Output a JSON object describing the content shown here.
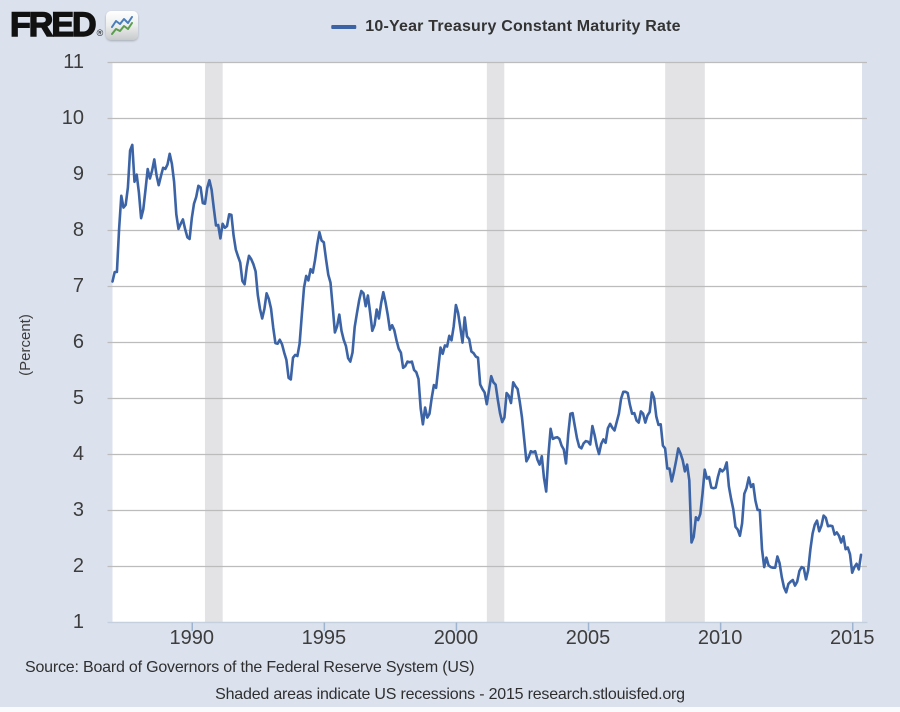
{
  "brand": {
    "logo_text": "FRED",
    "registered_mark": "®",
    "logo_icon": "fred-zigzag-chart-icon"
  },
  "legend": {
    "label": "10-Year Treasury Constant Maturity Rate",
    "line_color": "#3b63a5"
  },
  "footer": {
    "source_line": "Source: Board of Governors of the Federal Reserve System (US)",
    "note_line": "Shaded areas indicate US recessions - 2015 research.stlouisfed.org"
  },
  "colors": {
    "background": "#dbe2ee",
    "plot_background": "#ffffff",
    "gridline": "#bcbcbc",
    "recession_band": "#e3e3e5",
    "axis_line": "#c5d0df",
    "axis_tick": "#9eb4ce",
    "text": "#3d3d3d",
    "line": "#3b63a5"
  },
  "chart_data": {
    "type": "line",
    "title": "10-Year Treasury Constant Maturity Rate",
    "xlabel": "",
    "ylabel": "(Percent)",
    "xlim": [
      1987.0,
      2015.37
    ],
    "ylim": [
      1,
      11
    ],
    "y_ticks": [
      1,
      2,
      3,
      4,
      5,
      6,
      7,
      8,
      9,
      10,
      11
    ],
    "x_ticks": [
      1990,
      1995,
      2000,
      2005,
      2010,
      2015
    ],
    "grid": "horizontal",
    "legend_position": "top-center",
    "recession_note": "Shaded areas indicate US recessions",
    "recessions": [
      [
        1990.5,
        1991.17
      ],
      [
        2001.17,
        2001.83
      ],
      [
        2007.92,
        2009.42
      ]
    ],
    "series": [
      {
        "name": "10-Year Treasury Constant Maturity Rate",
        "color": "#3b63a5",
        "x_start": 1987.0,
        "x_step_years": 0.0833333,
        "frequency": "monthly",
        "values": [
          7.08,
          7.25,
          7.25,
          8.02,
          8.61,
          8.4,
          8.45,
          8.76,
          9.42,
          9.52,
          8.86,
          8.99,
          8.67,
          8.21,
          8.37,
          8.72,
          9.09,
          8.92,
          9.06,
          9.26,
          8.98,
          8.8,
          8.96,
          9.11,
          9.09,
          9.17,
          9.36,
          9.18,
          8.86,
          8.28,
          8.02,
          8.11,
          8.19,
          8.01,
          7.87,
          7.84,
          8.21,
          8.47,
          8.59,
          8.79,
          8.76,
          8.48,
          8.47,
          8.75,
          8.89,
          8.72,
          8.39,
          8.08,
          8.09,
          7.85,
          8.11,
          8.04,
          8.07,
          8.28,
          8.27,
          7.9,
          7.65,
          7.53,
          7.42,
          7.09,
          7.03,
          7.34,
          7.54,
          7.48,
          7.39,
          7.26,
          6.84,
          6.59,
          6.42,
          6.59,
          6.87,
          6.77,
          6.6,
          6.26,
          5.98,
          5.97,
          6.04,
          5.96,
          5.81,
          5.68,
          5.36,
          5.33,
          5.72,
          5.77,
          5.75,
          5.97,
          6.48,
          6.97,
          7.18,
          7.1,
          7.3,
          7.24,
          7.46,
          7.74,
          7.96,
          7.81,
          7.78,
          7.47,
          7.2,
          7.06,
          6.63,
          6.17,
          6.28,
          6.49,
          6.2,
          6.04,
          5.93,
          5.71,
          5.65,
          5.81,
          6.27,
          6.51,
          6.74,
          6.91,
          6.87,
          6.64,
          6.83,
          6.53,
          6.2,
          6.3,
          6.58,
          6.42,
          6.69,
          6.89,
          6.71,
          6.49,
          6.22,
          6.3,
          6.21,
          6.03,
          5.88,
          5.81,
          5.54,
          5.57,
          5.65,
          5.64,
          5.65,
          5.5,
          5.46,
          5.34,
          4.81,
          4.53,
          4.83,
          4.65,
          4.72,
          5.0,
          5.23,
          5.18,
          5.54,
          5.9,
          5.79,
          5.94,
          5.92,
          6.11,
          6.03,
          6.28,
          6.66,
          6.52,
          6.26,
          5.99,
          6.44,
          6.1,
          6.05,
          5.83,
          5.8,
          5.74,
          5.72,
          5.24,
          5.16,
          5.1,
          4.89,
          5.14,
          5.39,
          5.28,
          5.24,
          4.97,
          4.73,
          4.57,
          4.65,
          5.09,
          5.04,
          4.91,
          5.28,
          5.21,
          5.16,
          4.93,
          4.65,
          4.26,
          3.87,
          3.94,
          4.05,
          4.03,
          4.05,
          3.9,
          3.81,
          3.96,
          3.57,
          3.33,
          3.98,
          4.45,
          4.27,
          4.29,
          4.3,
          4.27,
          4.15,
          4.08,
          3.83,
          4.35,
          4.72,
          4.73,
          4.5,
          4.28,
          4.13,
          4.1,
          4.19,
          4.23,
          4.22,
          4.17,
          4.5,
          4.34,
          4.14,
          4.0,
          4.18,
          4.26,
          4.2,
          4.46,
          4.54,
          4.47,
          4.42,
          4.57,
          4.72,
          4.99,
          5.11,
          5.11,
          5.09,
          4.88,
          4.72,
          4.73,
          4.6,
          4.56,
          4.76,
          4.72,
          4.56,
          4.69,
          4.75,
          5.1,
          5.0,
          4.67,
          4.52,
          4.53,
          4.15,
          4.1,
          3.74,
          3.74,
          3.51,
          3.68,
          3.88,
          4.1,
          4.01,
          3.89,
          3.69,
          3.81,
          3.53,
          2.42,
          2.52,
          2.87,
          2.82,
          2.93,
          3.29,
          3.72,
          3.56,
          3.59,
          3.4,
          3.39,
          3.4,
          3.59,
          3.73,
          3.69,
          3.73,
          3.85,
          3.42,
          3.2,
          3.01,
          2.7,
          2.65,
          2.54,
          2.76,
          3.29,
          3.39,
          3.58,
          3.41,
          3.46,
          3.17,
          3.0,
          3.0,
          2.3,
          1.98,
          2.15,
          2.01,
          1.98,
          1.97,
          1.97,
          2.17,
          2.05,
          1.8,
          1.62,
          1.53,
          1.68,
          1.72,
          1.75,
          1.65,
          1.72,
          1.91,
          1.98,
          1.96,
          1.76,
          1.93,
          2.3,
          2.58,
          2.74,
          2.81,
          2.62,
          2.72,
          2.9,
          2.86,
          2.71,
          2.72,
          2.71,
          2.56,
          2.6,
          2.54,
          2.42,
          2.53,
          2.3,
          2.33,
          2.21,
          1.88,
          1.98,
          2.04,
          1.94,
          2.2
        ]
      }
    ]
  }
}
